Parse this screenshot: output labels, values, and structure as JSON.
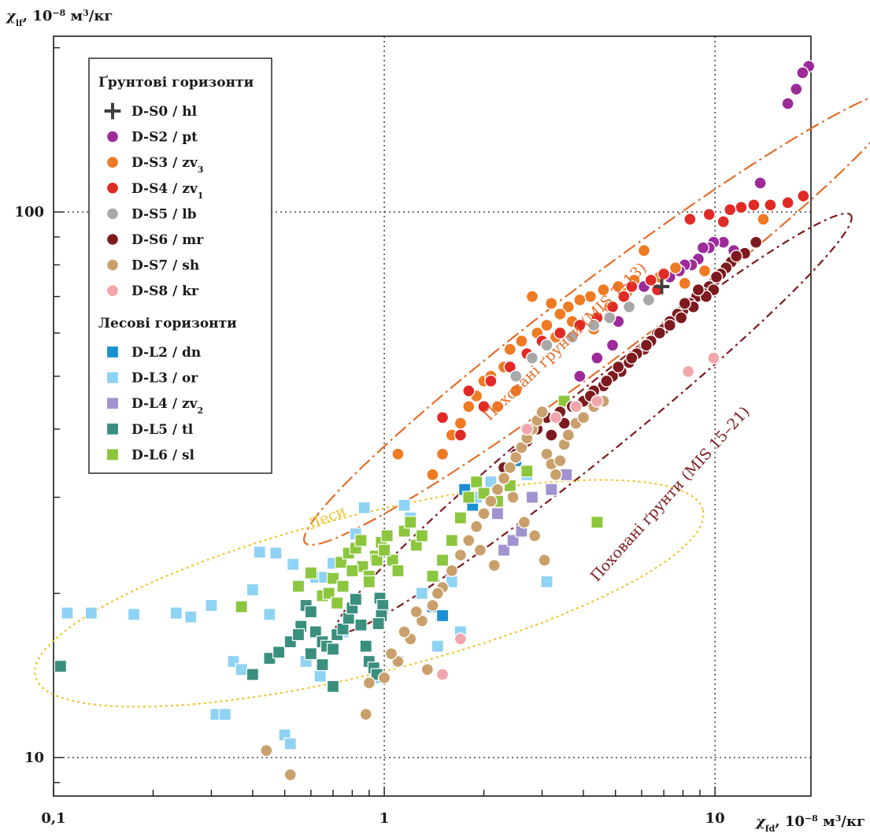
{
  "chart_data": {
    "type": "scatter",
    "x_scale": "log",
    "y_scale": "log",
    "xlim": [
      0.1,
      19.5
    ],
    "ylim": [
      8.5,
      210
    ],
    "x_ticks": [
      {
        "value": 0.1,
        "label": "0,1"
      },
      {
        "value": 1,
        "label": "1"
      },
      {
        "value": 10,
        "label": "10"
      }
    ],
    "y_ticks": [
      {
        "value": 10,
        "label": "10"
      },
      {
        "value": 100,
        "label": "100"
      }
    ],
    "xlabel": {
      "symbol": "χ",
      "sub": "fd",
      "unit": "10",
      "exp": "−8",
      "unit2": "м",
      "exp2": "3",
      "unit3": "/кг"
    },
    "ylabel": {
      "symbol": "χ",
      "sub": "lf",
      "unit": "10",
      "exp": "−8",
      "unit2": "м",
      "exp2": "3",
      "unit3": "/кг"
    },
    "gridlines": {
      "x": [
        1,
        10
      ],
      "y": [
        10,
        100
      ]
    },
    "legend": {
      "position": "top-left",
      "soil_title": "Ґрунтові горизонти",
      "loess_title": "Лесові горизонти"
    },
    "series": [
      {
        "name": "D-S0 / hl",
        "label": "D-S0 / ",
        "label_sub": "",
        "label_rest": "hl",
        "group": "soil",
        "marker": "plus",
        "color": "#404040",
        "x": [
          6.9
        ],
        "y": [
          73
        ]
      },
      {
        "name": "D-S2 / pt",
        "label": "D-S2 / pt",
        "group": "soil",
        "marker": "circle",
        "color": "#9c2a98",
        "x": [
          19.2,
          18.4,
          17.6,
          16.6,
          13.7,
          11.4,
          10.6,
          9.9,
          9.6,
          9.2,
          8.9,
          8.5,
          8.1,
          7.8,
          7.3,
          6.1,
          5.1,
          4.9,
          4.4,
          3.9
        ],
        "y": [
          185,
          180,
          168,
          158,
          113,
          85,
          88,
          88,
          86,
          86,
          82,
          80,
          80,
          78,
          76,
          73,
          63,
          57,
          54,
          50
        ]
      },
      {
        "name": "D-S3 / zv3",
        "label": "D-S3 / zv",
        "label_sub": "3",
        "group": "soil",
        "marker": "circle",
        "color": "#ee7a22",
        "x": [
          6.1,
          3.3,
          2.0,
          1.5,
          14.0,
          7.6,
          6.8,
          5.7,
          5.1,
          4.6,
          4.2,
          3.9,
          3.6,
          3.4,
          3.1,
          2.9,
          2.6,
          2.4,
          2.3,
          2.1,
          1.9,
          1.8,
          1.7,
          1.6,
          1.5,
          1.4,
          2.8,
          3.2,
          4.8,
          5.4,
          8.1,
          9.3,
          3.7,
          4.3,
          2.5,
          1.1,
          2.2
        ],
        "y": [
          85,
          59,
          49,
          42,
          97,
          79,
          76,
          75,
          73,
          72,
          70,
          69,
          67,
          65,
          62,
          60,
          58,
          56,
          52,
          50,
          46,
          44,
          41,
          39,
          36,
          33,
          70,
          68,
          67,
          71,
          74,
          78,
          63,
          61,
          47,
          36,
          44
        ]
      },
      {
        "name": "D-S4 / zv1",
        "label": "D-S4 / zv",
        "label_sub": "1",
        "group": "soil",
        "marker": "circle",
        "color": "#e02a26",
        "x": [
          18.5,
          16.6,
          14.7,
          13.1,
          12.0,
          11.1,
          10.6,
          9.6,
          8.4,
          7.0,
          6.4,
          5.6,
          4.9,
          4.4,
          3.9,
          3.4,
          3.0,
          2.7,
          2.4,
          2.1,
          1.8,
          2.0,
          1.5,
          1.7,
          5.3,
          6.7
        ],
        "y": [
          107,
          104,
          103,
          103,
          102,
          101,
          96,
          99,
          97,
          77,
          75,
          73,
          67,
          64,
          62,
          60,
          58,
          55,
          52,
          49,
          47,
          44,
          42,
          39,
          70,
          72
        ]
      },
      {
        "name": "D-S5 / lb",
        "label": "D-S5 / lb",
        "group": "soil",
        "marker": "circle",
        "color": "#a8a8a8",
        "x": [
          6.3,
          5.5,
          4.8,
          4.3,
          3.7,
          3.1,
          2.8,
          2.5
        ],
        "y": [
          69,
          67,
          64,
          62,
          59,
          57,
          54,
          50
        ]
      },
      {
        "name": "D-S6 / mr",
        "label": "D-S6 / mr",
        "group": "soil",
        "marker": "circle",
        "color": "#7d1a1f",
        "x": [
          13.3,
          12.3,
          11.2,
          10.8,
          10.4,
          10.0,
          9.6,
          9.2,
          8.8,
          8.4,
          8.0,
          7.7,
          7.3,
          7.0,
          6.7,
          6.4,
          6.1,
          5.8,
          5.5,
          5.2,
          4.9,
          4.6,
          4.3,
          4.0,
          3.7,
          3.4,
          3.1,
          2.9,
          2.7,
          2.5,
          2.3,
          9.9,
          9.4,
          8.6,
          7.9,
          7.3,
          6.8,
          6.2,
          5.6,
          5.1,
          4.7,
          4.2,
          3.8,
          3.5,
          3.2,
          11.6,
          10.1,
          8.9,
          8.1
        ],
        "y": [
          88,
          84,
          81,
          79,
          77,
          75,
          73,
          71,
          70,
          68,
          66,
          65,
          63,
          61,
          60,
          58,
          56,
          55,
          53,
          51,
          50,
          48,
          47,
          45,
          44,
          43,
          42,
          40,
          38,
          36,
          34,
          72,
          70,
          67,
          64,
          62,
          60,
          57,
          54,
          52,
          49,
          46,
          44,
          41,
          39,
          83,
          76,
          72,
          68
        ]
      },
      {
        "name": "D-S7 / sh",
        "label": "D-S7 / sh",
        "group": "soil",
        "marker": "circle",
        "color": "#c9a06b",
        "x": [
          0.52,
          0.44,
          0.88,
          0.9,
          1.1,
          1.2,
          1.3,
          1.4,
          1.5,
          1.6,
          1.7,
          1.8,
          1.9,
          2.0,
          2.1,
          2.2,
          2.3,
          2.4,
          2.5,
          2.6,
          2.7,
          2.8,
          2.9,
          3.0,
          3.1,
          3.2,
          3.3,
          3.4,
          3.5,
          3.6,
          3.8,
          4.0,
          4.3,
          4.6,
          1.0,
          1.05,
          1.15,
          1.25,
          1.35,
          1.45,
          2.45,
          2.65,
          2.85,
          3.05,
          2.15,
          1.95
        ],
        "y": [
          9.3,
          10.3,
          12.0,
          13.7,
          15.0,
          16.5,
          17.8,
          19.0,
          20.5,
          22.0,
          23.5,
          25.0,
          26.5,
          28.0,
          29.5,
          31.0,
          32.5,
          34.0,
          35.5,
          37.0,
          38.5,
          40.0,
          41.5,
          43.0,
          36.0,
          34.5,
          33.0,
          35.0,
          37.5,
          39.0,
          41.0,
          42.0,
          44.0,
          45.0,
          14.0,
          15.5,
          17.0,
          18.5,
          14.5,
          20.0,
          30.0,
          27.0,
          25.5,
          23.0,
          22.5,
          24.0
        ]
      },
      {
        "name": "D-S8 / kr",
        "label": "D-S8 / kr",
        "group": "soil",
        "marker": "circle",
        "color": "#f2a6ac",
        "x": [
          9.9,
          8.3,
          4.4,
          3.8,
          3.3,
          2.7,
          1.5,
          1.7
        ],
        "y": [
          54,
          51,
          45,
          44,
          42,
          40,
          14.2,
          16.5
        ]
      },
      {
        "name": "D-L2 / dn",
        "label": "D-L2 / dn",
        "group": "loess",
        "marker": "square",
        "color": "#1b8fd2",
        "x": [
          1.4,
          1.75,
          2.1,
          2.5,
          1.5,
          1.85
        ],
        "y": [
          18.9,
          31,
          32,
          35,
          18.2,
          29
        ]
      },
      {
        "name": "D-L3 / or",
        "label": "D-L3 / or",
        "group": "loess",
        "marker": "square",
        "color": "#8fd3f4",
        "x": [
          0.11,
          0.13,
          0.175,
          0.235,
          0.26,
          0.3,
          0.31,
          0.33,
          0.35,
          0.37,
          0.45,
          0.47,
          0.5,
          0.52,
          0.53,
          0.55,
          0.62,
          0.66,
          0.7,
          0.75,
          0.82,
          0.87,
          0.95,
          1.1,
          1.15,
          1.2,
          1.3,
          1.45,
          1.6,
          1.7,
          1.9,
          2.1,
          2.7,
          3.1,
          0.42,
          0.4,
          0.58,
          0.64
        ],
        "y": [
          18.4,
          18.4,
          18.3,
          18.4,
          18.1,
          19.0,
          12.0,
          12.0,
          15.0,
          14.5,
          18.3,
          23.7,
          11.0,
          10.6,
          22.6,
          20.7,
          21.4,
          21.4,
          22.7,
          17.0,
          25.7,
          28.7,
          14.0,
          15.0,
          29.0,
          27.5,
          20.0,
          16.0,
          21.0,
          17.0,
          30.0,
          32.0,
          33.0,
          21.0,
          23.8,
          20.3,
          15.0,
          14.1
        ]
      },
      {
        "name": "D-L4 / zv2",
        "label": "D-L4 / zv",
        "label_sub": "2",
        "group": "loess",
        "marker": "square",
        "color": "#a093cf",
        "x": [
          2.3,
          2.45,
          2.6,
          2.8,
          3.2,
          3.55,
          2.2
        ],
        "y": [
          24,
          25,
          26,
          30,
          31,
          33,
          28
        ]
      },
      {
        "name": "D-L5 / tl",
        "label": "D-L5 / tl",
        "group": "loess",
        "marker": "square",
        "color": "#3a8f7d",
        "x": [
          0.105,
          0.4,
          0.45,
          0.48,
          0.52,
          0.56,
          0.58,
          0.6,
          0.62,
          0.65,
          0.67,
          0.7,
          0.72,
          0.75,
          0.78,
          0.8,
          0.82,
          0.85,
          0.88,
          0.9,
          0.93,
          0.95,
          0.97,
          0.99,
          0.98,
          0.96,
          0.7,
          0.65,
          0.6,
          0.55
        ],
        "y": [
          14.7,
          14.2,
          15.2,
          15.6,
          16.3,
          17.4,
          19.0,
          18.5,
          17.0,
          16.3,
          16.0,
          15.8,
          16.8,
          17.2,
          18.0,
          18.8,
          19.5,
          17.5,
          16.0,
          15.0,
          14.6,
          14.2,
          19.6,
          19.0,
          18.2,
          17.6,
          13.5,
          14.8,
          15.5,
          16.8
        ]
      },
      {
        "name": "D-L6 / sl",
        "label": "D-L6 / sl",
        "group": "loess",
        "marker": "square",
        "color": "#8cc63f",
        "x": [
          0.37,
          0.55,
          0.6,
          0.65,
          0.7,
          0.74,
          0.78,
          0.82,
          0.86,
          0.9,
          0.94,
          0.98,
          1.02,
          1.06,
          1.1,
          1.15,
          1.2,
          1.25,
          1.3,
          1.4,
          1.5,
          1.6,
          1.7,
          1.8,
          1.9,
          2.0,
          2.2,
          2.4,
          2.7,
          3.5,
          4.4,
          0.75,
          0.8,
          0.85,
          0.9,
          0.95,
          1.0,
          0.68,
          0.72
        ],
        "y": [
          18.9,
          20.6,
          21.8,
          19.8,
          21.3,
          22.8,
          23.7,
          24.2,
          22.4,
          21.5,
          23.4,
          24.8,
          25.5,
          23.0,
          22.0,
          26.0,
          27.0,
          24.5,
          25.5,
          21.5,
          23.0,
          25.0,
          27.5,
          30.0,
          32.0,
          30.5,
          29.5,
          31.5,
          33.5,
          45.0,
          27.0,
          20.6,
          22.0,
          25.0,
          21.0,
          23.0,
          24.0,
          20.0,
          19.2
        ]
      }
    ],
    "annotations": [
      {
        "text": "Поховані ґрунти (MIS 7–13)",
        "color": "#e46d2a",
        "x": 3.6,
        "y": 57,
        "angle": -44
      },
      {
        "text": "Поховані ґрунти (MIS 15–21)",
        "color": "#7d1a1f",
        "x": 7.5,
        "y": 30,
        "angle": -48
      },
      {
        "text": "Леси",
        "color": "#f2c430",
        "x": 0.68,
        "y": 27,
        "angle": -23
      }
    ],
    "ellipses": [
      {
        "name": "MIS 7–13",
        "color": "#e46d2a",
        "dash": "long-dash-dot",
        "cx": 4.6,
        "cy": 64,
        "rx_decades": 1.13,
        "ry_decades": 0.12,
        "angle": -37
      },
      {
        "name": "MIS 15–21",
        "color": "#7d1a1f",
        "dash": "dash-dot",
        "cx": 4.3,
        "cy": 41,
        "rx_decades": 1.0,
        "ry_decades": 0.1,
        "angle": -39
      },
      {
        "name": "Леси",
        "color": "#f2c430",
        "dash": "dotted",
        "cx": 0.9,
        "cy": 20,
        "rx_decades": 1.04,
        "ry_decades": 0.24,
        "angle": -14
      }
    ]
  }
}
